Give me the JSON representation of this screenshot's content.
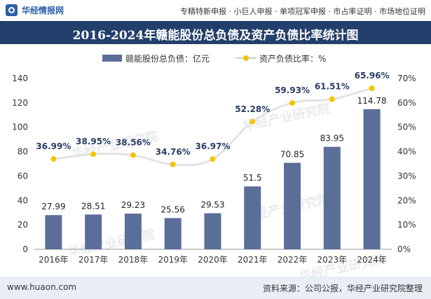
{
  "header": {
    "logo_text": "华经情报网",
    "links": "专精特新申报 · 小巨人申报 · 单项冠军申报 · 市占率证明 · 市场地位证明"
  },
  "footer": {
    "website": "www.huaon.com",
    "source": "资料来源：公司公报，华经产业研究院整理"
  },
  "watermark": "华经产业研究院",
  "colors": {
    "title_bar": "#233f6b",
    "bar": "#5b6e9a",
    "line": "#e3e3e3",
    "marker": "#f5c500"
  },
  "chart_data": {
    "type": "bar",
    "title": "2016-2024年赣能股份总负债及资产负债比率统计图",
    "categories": [
      "2016年",
      "2017年",
      "2018年",
      "2019年",
      "2020年",
      "2021年",
      "2022年",
      "2023年",
      "2024年"
    ],
    "series": [
      {
        "name": "赣能股份总负债：亿元",
        "type": "bar",
        "axis": "left",
        "values": [
          27.99,
          28.51,
          29.23,
          25.56,
          29.53,
          51.5,
          70.85,
          83.95,
          114.78
        ],
        "labels": [
          "27.99",
          "28.51",
          "29.23",
          "25.56",
          "29.53",
          "51.5",
          "70.85",
          "83.95",
          "114.78"
        ]
      },
      {
        "name": "资产负债比率：%",
        "type": "line",
        "axis": "right",
        "values": [
          36.99,
          38.95,
          38.56,
          34.76,
          36.97,
          52.28,
          59.93,
          61.51,
          65.96
        ],
        "labels": [
          "36.99%",
          "38.95%",
          "38.56%",
          "34.76%",
          "36.97%",
          "52.28%",
          "59.93%",
          "61.51%",
          "65.96%"
        ]
      }
    ],
    "y_left": {
      "range": [
        0,
        140
      ],
      "ticks": [
        0,
        20,
        40,
        60,
        80,
        100,
        120,
        140
      ],
      "tick_labels": [
        "0",
        "20",
        "40",
        "60",
        "80",
        "100",
        "120",
        "140"
      ]
    },
    "y_right": {
      "range": [
        0,
        70
      ],
      "ticks": [
        0,
        10,
        20,
        30,
        40,
        50,
        60,
        70
      ],
      "tick_labels": [
        "0%",
        "10%",
        "20%",
        "30%",
        "40%",
        "50%",
        "60%",
        "70%"
      ]
    },
    "legend_position": "top-center",
    "grid": false
  }
}
